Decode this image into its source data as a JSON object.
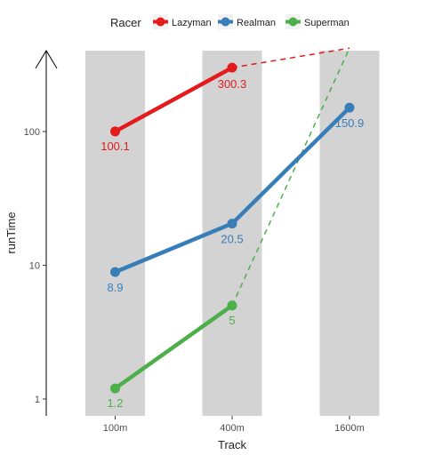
{
  "chart_data": {
    "type": "line",
    "title": "",
    "xlabel": "Track",
    "ylabel": "runTime",
    "y_scale": "log",
    "ylim": [
      0.7,
      450
    ],
    "y_ticks": [
      1,
      10,
      100
    ],
    "y_tick_labels": [
      "1",
      "10",
      "100"
    ],
    "categories": [
      "100m",
      "400m",
      "1600m"
    ],
    "shaded_categories": [
      "100m",
      "400m",
      "1600m"
    ],
    "legend": {
      "title": "Racer",
      "position": "top"
    },
    "series": [
      {
        "name": "Lazyman",
        "color": "#e41a1c",
        "values": [
          100.1,
          300.3,
          null
        ],
        "labels": [
          "100.1",
          "300.3",
          ""
        ],
        "extrapolation": {
          "from": "400m",
          "to": "1600m",
          "to_value": 420
        }
      },
      {
        "name": "Realman",
        "color": "#377eb8",
        "values": [
          8.9,
          20.5,
          150.9
        ],
        "labels": [
          "8.9",
          "20.5",
          "150.9"
        ]
      },
      {
        "name": "Superman",
        "color": "#4daf4a",
        "values": [
          1.2,
          5,
          null
        ],
        "labels": [
          "1.2",
          "5",
          ""
        ],
        "extrapolation": {
          "from": "400m",
          "to": "1600m",
          "to_value": 420
        }
      }
    ]
  }
}
